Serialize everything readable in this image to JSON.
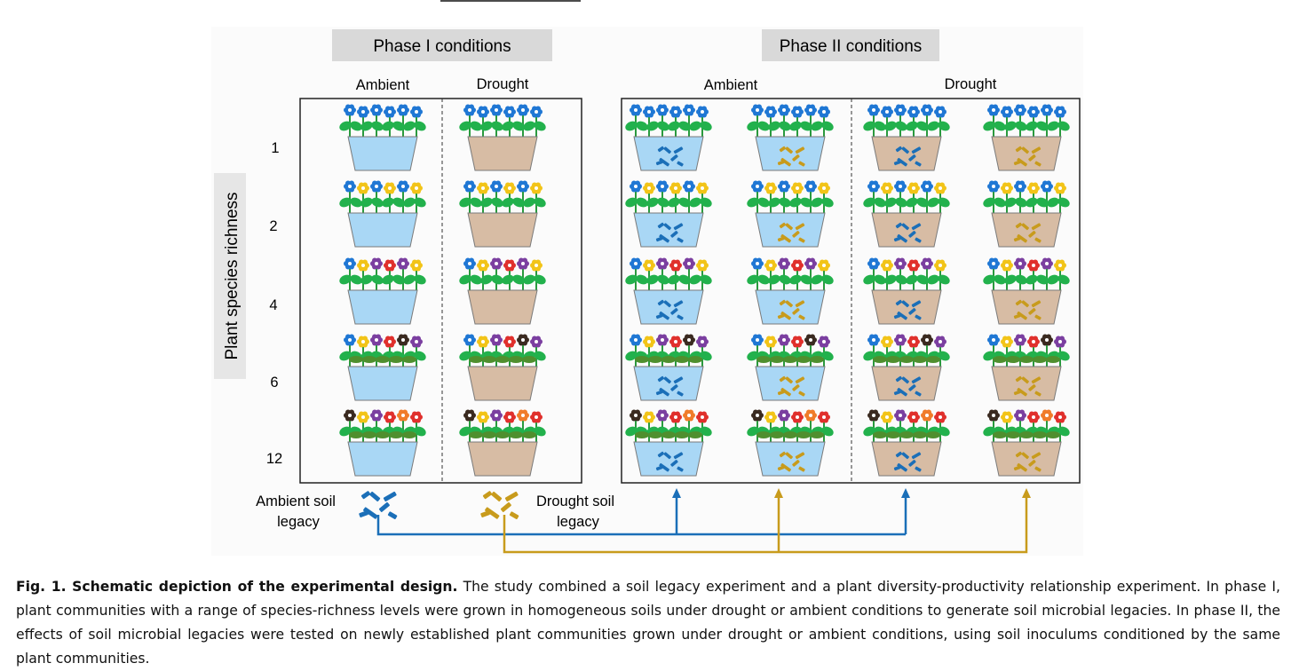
{
  "figure": {
    "phase1_title": "Phase I conditions",
    "phase2_title": "Phase II conditions",
    "col_ambient": "Ambient",
    "col_drought": "Drought",
    "y_label": "Plant species richness",
    "richness_levels": [
      "1",
      "2",
      "4",
      "6",
      "12"
    ],
    "legend_ambient_line1": "Ambient soil",
    "legend_ambient_line2": "legacy",
    "legend_drought_line1": "Drought soil",
    "legend_drought_line2": "legacy"
  },
  "colors": {
    "ambient_pot": "#a9d7f5",
    "drought_pot": "#d7bca4",
    "ambient_legacy": "#1b6fb8",
    "drought_legacy": "#c89b1c",
    "leaf": "#22b14c",
    "header_bg": "#d9d9d9",
    "side_bg": "#e6e6e6"
  },
  "caption": {
    "title": "Fig. 1. Schematic depiction of the experimental design.",
    "body": "The study combined a soil legacy experiment and a plant diversity-productivity relationship experiment. In phase I, plant communities with a range of species-richness levels were grown in homogeneous soils under drought or ambient conditions to generate soil microbial legacies. In phase II, the effects of soil microbial legacies were tested on newly established plant communities grown under drought or ambient conditions, using soil inoculums conditioned by the same plant communities."
  }
}
